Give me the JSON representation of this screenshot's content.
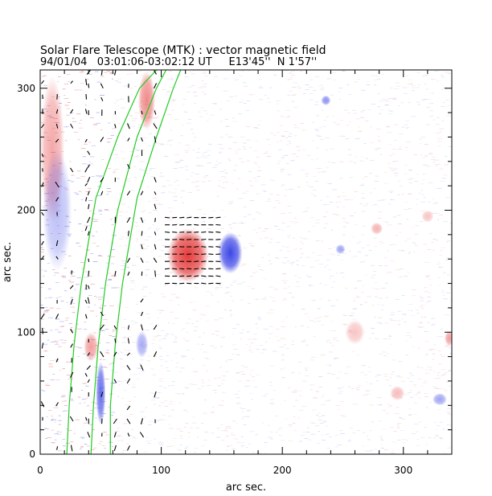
{
  "chart_data": {
    "type": "heatmap",
    "title": "Solar Flare Telescope (MTK) : vector magnetic field",
    "subtitle": "94/01/04   03:01:06-03:02:12 UT     E13'45''  N 1'57''",
    "xlabel": "arc sec.",
    "ylabel": "arc sec.",
    "xlim": [
      0,
      340
    ],
    "ylim": [
      0,
      315
    ],
    "x_major_ticks": [
      0,
      100,
      200,
      300
    ],
    "y_major_ticks": [
      0,
      100,
      200,
      300
    ],
    "x_minor_step": 20,
    "y_minor_step": 20,
    "colors": {
      "positive": "#e63c3c",
      "negative": "#3c46e6",
      "contour": "#22cc22",
      "frame": "#000000"
    },
    "limb_contours": [
      {
        "name": "outer",
        "points": [
          [
            22,
            0
          ],
          [
            24,
            40
          ],
          [
            28,
            90
          ],
          [
            34,
            140
          ],
          [
            46,
            210
          ],
          [
            64,
            260
          ],
          [
            82,
            300
          ],
          [
            96,
            315
          ]
        ]
      },
      {
        "name": "middle",
        "points": [
          [
            42,
            0
          ],
          [
            44,
            40
          ],
          [
            48,
            90
          ],
          [
            54,
            140
          ],
          [
            64,
            200
          ],
          [
            80,
            260
          ],
          [
            96,
            300
          ],
          [
            104,
            315
          ]
        ]
      },
      {
        "name": "inner",
        "points": [
          [
            58,
            0
          ],
          [
            58,
            40
          ],
          [
            62,
            90
          ],
          [
            68,
            140
          ],
          [
            80,
            210
          ],
          [
            96,
            260
          ],
          [
            110,
            300
          ],
          [
            116,
            315
          ]
        ]
      }
    ],
    "polarity_regions": [
      {
        "polarity": "positive",
        "x": 122,
        "y": 163,
        "rx": 17,
        "ry": 22,
        "strength": 1.0
      },
      {
        "polarity": "negative",
        "x": 157,
        "y": 165,
        "rx": 10,
        "ry": 17,
        "strength": 1.0
      },
      {
        "polarity": "negative",
        "x": 84,
        "y": 90,
        "rx": 5,
        "ry": 11,
        "strength": 0.45
      },
      {
        "polarity": "negative",
        "x": 50,
        "y": 50,
        "rx": 4,
        "ry": 26,
        "strength": 0.8
      },
      {
        "polarity": "positive",
        "x": 42,
        "y": 88,
        "rx": 6,
        "ry": 12,
        "strength": 0.5
      },
      {
        "polarity": "positive",
        "x": 88,
        "y": 290,
        "rx": 7,
        "ry": 24,
        "strength": 0.6
      },
      {
        "polarity": "negative",
        "x": 236,
        "y": 290,
        "rx": 4,
        "ry": 4,
        "strength": 0.6
      },
      {
        "polarity": "negative",
        "x": 248,
        "y": 168,
        "rx": 4,
        "ry": 4,
        "strength": 0.5
      },
      {
        "polarity": "positive",
        "x": 278,
        "y": 185,
        "rx": 5,
        "ry": 5,
        "strength": 0.4
      },
      {
        "polarity": "positive",
        "x": 260,
        "y": 100,
        "rx": 8,
        "ry": 10,
        "strength": 0.3
      },
      {
        "polarity": "positive",
        "x": 295,
        "y": 50,
        "rx": 6,
        "ry": 6,
        "strength": 0.35
      },
      {
        "polarity": "negative",
        "x": 330,
        "y": 45,
        "rx": 6,
        "ry": 5,
        "strength": 0.5
      },
      {
        "polarity": "positive",
        "x": 338,
        "y": 95,
        "rx": 4,
        "ry": 6,
        "strength": 0.5
      },
      {
        "polarity": "positive",
        "x": 320,
        "y": 195,
        "rx": 5,
        "ry": 5,
        "strength": 0.3
      },
      {
        "polarity": "positive",
        "x": 10,
        "y": 250,
        "rx": 10,
        "ry": 60,
        "strength": 0.45
      },
      {
        "polarity": "negative",
        "x": 14,
        "y": 200,
        "rx": 12,
        "ry": 50,
        "strength": 0.35
      }
    ],
    "transverse_field_vectors": {
      "regions": [
        {
          "x_range": [
            105,
            150
          ],
          "y_range": [
            140,
            195
          ],
          "step": 6
        },
        {
          "x_range": [
            2,
            40
          ],
          "y_range": [
            5,
            315
          ],
          "step": 12
        },
        {
          "x_range": [
            40,
            100
          ],
          "y_range": [
            5,
            315
          ],
          "step": 11
        }
      ]
    }
  }
}
